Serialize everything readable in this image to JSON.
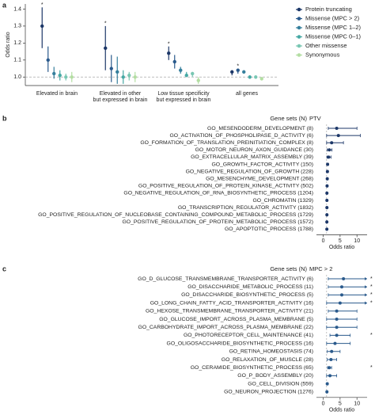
{
  "chart_data": [
    {
      "type": "pointrange",
      "panel": "a",
      "ylabel": "Odds ratio",
      "categories": [
        [
          "Elevated in brain"
        ],
        [
          "Elevated in other",
          "but expressed in brain"
        ],
        [
          "Low tissue specificity",
          "but expressed in brain"
        ],
        [
          "all genes"
        ]
      ],
      "series": [
        {
          "name": "Protein truncating",
          "color": "#1c3768",
          "values": [
            1.3,
            1.17,
            1.14,
            1.03
          ],
          "lower": [
            1.17,
            1.04,
            1.1,
            1.01
          ],
          "upper": [
            1.41,
            1.3,
            1.18,
            1.04
          ],
          "significance": [
            "*",
            "*",
            "*",
            null
          ]
        },
        {
          "name": "Missense (MPC > 2)",
          "color": "#2a5a8c",
          "values": [
            1.1,
            1.05,
            1.09,
            1.04
          ],
          "lower": [
            1.03,
            0.97,
            1.05,
            1.02
          ],
          "upper": [
            1.18,
            1.13,
            1.13,
            1.05
          ],
          "significance": [
            null,
            null,
            null,
            "*"
          ]
        },
        {
          "name": "Missense (MPC 1–2)",
          "color": "#357f9c",
          "values": [
            1.02,
            1.03,
            1.04,
            1.03
          ],
          "lower": [
            0.99,
            0.96,
            1.02,
            1.02
          ],
          "upper": [
            1.06,
            1.12,
            1.06,
            1.04
          ],
          "significance": [
            null,
            null,
            null,
            null
          ]
        },
        {
          "name": "Missense (MPC 0–1)",
          "color": "#46a9a4",
          "values": [
            1.01,
            1.0,
            1.01,
            1.0
          ],
          "lower": [
            0.98,
            0.96,
            1.0,
            0.99
          ],
          "upper": [
            1.04,
            1.04,
            1.03,
            1.01
          ],
          "significance": [
            null,
            null,
            null,
            null
          ]
        },
        {
          "name": "Other missense",
          "color": "#79c7b3",
          "values": [
            1.0,
            1.01,
            1.02,
            1.0
          ],
          "lower": [
            0.98,
            0.98,
            1.0,
            0.99
          ],
          "upper": [
            1.02,
            1.03,
            1.03,
            1.01
          ],
          "significance": [
            null,
            null,
            null,
            null
          ]
        },
        {
          "name": "Synonymous",
          "color": "#b3dea2",
          "values": [
            1.0,
            1.0,
            0.98,
            0.99
          ],
          "lower": [
            0.97,
            0.97,
            0.96,
            0.98
          ],
          "upper": [
            1.03,
            1.03,
            1.0,
            1.0
          ],
          "significance": [
            null,
            null,
            null,
            null
          ]
        }
      ],
      "ylim": [
        0.95,
        1.43
      ],
      "yticks": [
        {
          "value": 1,
          "label": "1.0"
        },
        1.1,
        1.2,
        1.3,
        1.4
      ],
      "refline": 1,
      "legend": "upper right"
    },
    {
      "type": "forest",
      "panel": "b",
      "column_header": "Gene sets (N)",
      "title": "PTV",
      "xlabel": "Odds ratio",
      "color": "#1c3768",
      "categories": [
        "GO_MESENDODERM_DEVELOPMENT (8)",
        "GO_ACTIVATION_OF_PHOSPHOLIPASE_D_ACTIVITY (6)",
        "GO_FORMATION_OF_TRANSLATION_PREINITIATION_COMPLEX (8)",
        "GO_MOTOR_NEURON_AXON_GUIDANCE (30)",
        "GO_EXTRACELLULAR_MATRIX_ASSEMBLY (39)",
        "GO_GROWTH_FACTOR_ACTIVITY (150)",
        "GO_NEGATIVE_REGULATION_OF_GROWTH (228)",
        "GO_MESENCHYME_DEVELOPMENT (268)",
        "GO_POSITIVE_REGULATION_OF_PROTEIN_KINASE_ACTIVITY (502)",
        "GO_NEGATIVE_REGULATION_OF_RNA_BIOSYNTHETIC_PROCESS (1204)",
        "GO_CHROMATIN (1329)",
        "GO_TRANSCRIPTION_REGULATOR_ACTIVITY (1832)",
        "GO_POSITIVE_REGULATION_OF_NUCLEOBASE_CONTAINING_COMPOUND_METABOLIC_PROCESS (1729)",
        "GO_POSITIVE_REGULATION_OF_PROTEIN_METABOLIC_PROCESS (1572)",
        "GO_APOPTOTIC_PROCESS (1788)"
      ],
      "values": [
        4,
        4.5,
        2.5,
        1.8,
        1.6,
        1.3,
        1.25,
        1.2,
        1.15,
        1.1,
        1.1,
        1.1,
        1.1,
        1.08,
        1.08
      ],
      "lower": [
        1.5,
        1,
        1,
        1.2,
        1.1,
        1.1,
        1.05,
        1.05,
        1.05,
        1.03,
        1.03,
        1.03,
        1.03,
        1.02,
        1.02
      ],
      "upper": [
        10,
        11,
        6,
        2.6,
        2.3,
        1.5,
        1.45,
        1.4,
        1.3,
        1.2,
        1.2,
        1.2,
        1.2,
        1.15,
        1.15
      ],
      "xlim": [
        -2,
        13
      ],
      "xticks": [
        0,
        5,
        10
      ],
      "refline": 1
    },
    {
      "type": "forest",
      "panel": "c",
      "column_header": "Gene sets (N)",
      "title": "MPC > 2",
      "xlabel": "Odds ratio",
      "color": "#2a5a8c",
      "categories": [
        "GO_D_GLUCOSE_TRANSMEMBRANE_TRANSPORTER_ACTIVITY (6)",
        "GO_DISACCHARIDE_METABOLIC_PROCESS (11)",
        "GO_DISACCHARIDE_BIOSYNTHETIC_PROCESS (5)",
        "GO_LONG_CHAIN_FATTY_ACID_TRANSPORTER_ACTIVITY (16)",
        "GO_HEXOSE_TRANSMEMBRANE_TRANSPORTER_ACTIVITY (21)",
        "GO_GLUCOSE_IMPORT_ACROSS_PLASMA_MEMBRANE (5)",
        "GO_CARBOHYDRATE_IMPORT_ACROSS_PLASMA_MEMBRANE (22)",
        "GO_PHOTORECEPTOR_CELL_MAINTENANCE (41)",
        "GO_OLIGOSACCHARIDE_BIOSYNTHETIC_PROCESS (16)",
        "GO_RETINA_HOMEOSTASIS (74)",
        "GO_RELAXATION_OF_MUSCLE (28)",
        "GO_CERAMIDE_BIOSYNTHETIC_PROCESS (65)",
        "GO_P_BODY_ASSEMBLY (20)",
        "GO_CELL_DIVISION (559)",
        "GO_NEURON_PROJECTION (1276)"
      ],
      "values": [
        6,
        5.5,
        5.5,
        5,
        4,
        4,
        4,
        4,
        3.5,
        2.5,
        2.3,
        1.8,
        2,
        1.2,
        1.1
      ],
      "lower": [
        1.5,
        1.5,
        1.5,
        1,
        1.5,
        1,
        1,
        2,
        1,
        1.2,
        1.2,
        1.3,
        1,
        1.05,
        1.02
      ],
      "upper": [
        15,
        15,
        15,
        15,
        10,
        10,
        10,
        8,
        8,
        5,
        4,
        2.5,
        4,
        1.4,
        1.2
      ],
      "significance": [
        "*",
        "*",
        "*",
        "*",
        null,
        null,
        null,
        "*",
        null,
        null,
        null,
        "*",
        null,
        null,
        null
      ],
      "xlim": [
        -2,
        13
      ],
      "xticks": [
        0,
        5,
        10
      ],
      "refline": 1
    }
  ]
}
